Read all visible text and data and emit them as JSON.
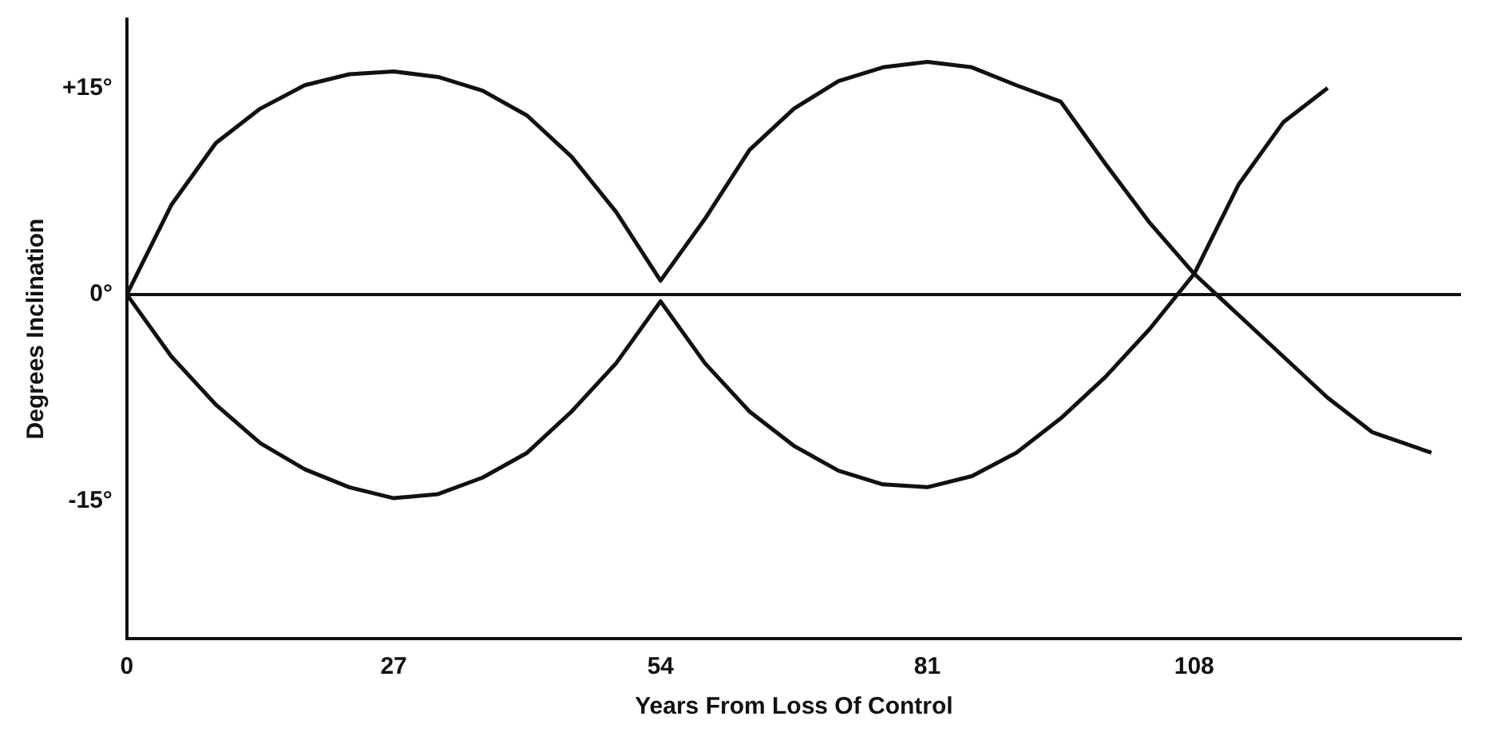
{
  "chart_data": {
    "type": "line",
    "xlabel": "Years From Loss Of Control",
    "ylabel": "Degrees Inclination",
    "x": [
      0,
      4.5,
      9,
      13.5,
      18,
      22.5,
      27,
      31.5,
      36,
      40.5,
      45,
      49.5,
      54,
      58.5,
      63,
      67.5,
      72,
      76.5,
      81,
      85.5,
      90,
      94.5,
      99,
      103.5,
      108,
      112.5,
      117,
      121.5,
      126,
      132
    ],
    "series": [
      {
        "color": "#111111",
        "values": [
          0,
          6.5,
          11,
          13.5,
          15.2,
          16,
          16.2,
          15.8,
          14.8,
          13,
          10,
          6,
          1,
          5.5,
          10.5,
          13.5,
          15.5,
          16.5,
          16.9,
          16.5,
          15.2,
          14,
          9.5,
          5.2,
          1.5,
          8,
          12.5,
          15,
          null,
          null
        ]
      },
      {
        "color": "#111111",
        "values": [
          0,
          -4.5,
          -8,
          -10.8,
          -12.7,
          -14,
          -14.8,
          -14.5,
          -13.3,
          -11.5,
          -8.5,
          -5,
          -0.5,
          -5,
          -8.5,
          -11,
          -12.8,
          -13.8,
          -14,
          -13.2,
          -11.5,
          -9,
          -6,
          -2.5,
          1.5,
          -1.5,
          -4.5,
          -7.5,
          -10,
          -11.5
        ]
      }
    ],
    "xlim": [
      0,
      135
    ],
    "xticks": [
      0,
      27,
      54,
      81,
      108
    ],
    "ylim": [
      -25,
      20
    ],
    "yticks": [
      {
        "value": 15,
        "label": "+15°"
      },
      {
        "value": 0,
        "label": "0°"
      },
      {
        "value": -15,
        "label": "-15°"
      }
    ],
    "ref_lines": [
      {
        "axis": "y",
        "value": 0,
        "color": "#111111"
      }
    ],
    "grid": false,
    "legend": false,
    "marker": "none",
    "line_style": "solid"
  }
}
